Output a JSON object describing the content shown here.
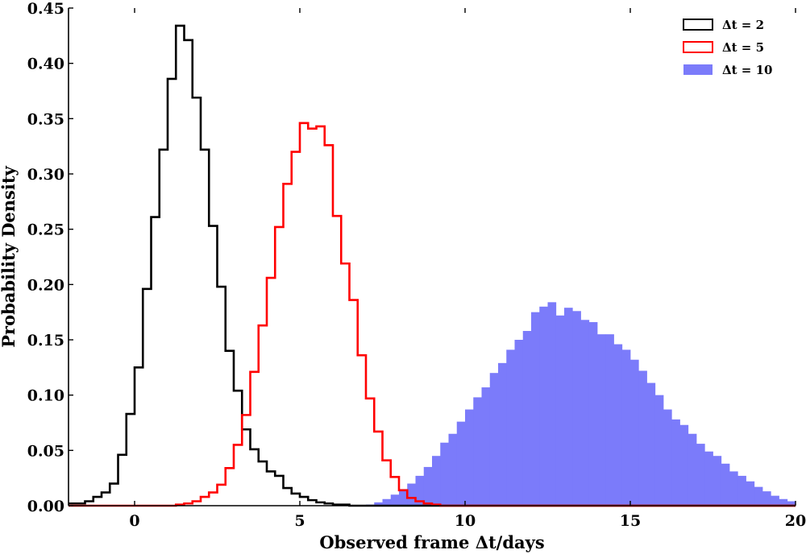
{
  "chart_data": {
    "type": "histogram",
    "xlabel": "Observed frame Δt/days",
    "ylabel": "Probability Density",
    "xlim": [
      -2,
      20
    ],
    "ylim": [
      0,
      0.45
    ],
    "x_ticks": [
      {
        "value": 0,
        "label": "0"
      },
      {
        "value": 5,
        "label": "5"
      },
      {
        "value": 10,
        "label": "10"
      },
      {
        "value": 15,
        "label": "15"
      },
      {
        "value": 20,
        "label": "20"
      }
    ],
    "y_ticks": [
      {
        "value": 0,
        "label": "0.00"
      },
      {
        "value": 0.05,
        "label": "0.05"
      },
      {
        "value": 0.1,
        "label": "0.10"
      },
      {
        "value": 0.15,
        "label": "0.15"
      },
      {
        "value": 0.2,
        "label": "0.20"
      },
      {
        "value": 0.25,
        "label": "0.25"
      },
      {
        "value": 0.3,
        "label": "0.30"
      },
      {
        "value": 0.35,
        "label": "0.35"
      },
      {
        "value": 0.4,
        "label": "0.40"
      },
      {
        "value": 0.45,
        "label": "0.45"
      }
    ],
    "legend_position": "top-right",
    "series": [
      {
        "name": "Δt = 2",
        "style": "step",
        "color": "#000000",
        "x0": -2.0,
        "bin_width": 0.25,
        "values": [
          0.002,
          0.002,
          0.004,
          0.008,
          0.012,
          0.02,
          0.046,
          0.083,
          0.125,
          0.196,
          0.261,
          0.322,
          0.386,
          0.434,
          0.421,
          0.369,
          0.322,
          0.253,
          0.198,
          0.14,
          0.104,
          0.069,
          0.051,
          0.04,
          0.031,
          0.027,
          0.016,
          0.011,
          0.008,
          0.005,
          0.003,
          0.002,
          0.001,
          0.001,
          0.0,
          0.0,
          0.0,
          0.0,
          0.0,
          0.0,
          0.0,
          0.0,
          0.0,
          0.0,
          0.0,
          0.0,
          0.0,
          0.0,
          0.0,
          0.0,
          0.0,
          0.0,
          0.0,
          0.0,
          0.0,
          0.0,
          0.0,
          0.0,
          0.0,
          0.0,
          0.0,
          0.0,
          0.0,
          0.0,
          0.0,
          0.0,
          0.0,
          0.0,
          0.0,
          0.0,
          0.0,
          0.0,
          0.0,
          0.0,
          0.0,
          0.0,
          0.0,
          0.0,
          0.0,
          0.0,
          0.0,
          0.0,
          0.0,
          0.0,
          0.0,
          0.0,
          0.0,
          0.0
        ]
      },
      {
        "name": "Δt = 5",
        "style": "step",
        "color": "#ff0000",
        "x0": -2.0,
        "bin_width": 0.25,
        "values": [
          0.0,
          0.0,
          0.0,
          0.0,
          0.0,
          0.0,
          0.0,
          0.0,
          0.0,
          0.0,
          0.0,
          0.0,
          0.0,
          0.001,
          0.002,
          0.004,
          0.008,
          0.012,
          0.019,
          0.034,
          0.055,
          0.082,
          0.121,
          0.163,
          0.206,
          0.252,
          0.291,
          0.32,
          0.346,
          0.341,
          0.343,
          0.326,
          0.262,
          0.219,
          0.186,
          0.136,
          0.097,
          0.067,
          0.041,
          0.026,
          0.014,
          0.007,
          0.004,
          0.002,
          0.001,
          0.0,
          0.0,
          0.0,
          0.0,
          0.0,
          0.0,
          0.0,
          0.0,
          0.0,
          0.0,
          0.0,
          0.0,
          0.0,
          0.0,
          0.0,
          0.0,
          0.0,
          0.0,
          0.0,
          0.0,
          0.0,
          0.0,
          0.0,
          0.0,
          0.0,
          0.0,
          0.0,
          0.0,
          0.0,
          0.0,
          0.0,
          0.0,
          0.0,
          0.0,
          0.0,
          0.0,
          0.0,
          0.0,
          0.0,
          0.0,
          0.0,
          0.0,
          0.0
        ]
      },
      {
        "name": "Δt = 10",
        "style": "filled",
        "color": "#7b7bfa",
        "x0": -2.0,
        "bin_width": 0.25,
        "values": [
          0.0,
          0.0,
          0.0,
          0.0,
          0.0,
          0.0,
          0.0,
          0.0,
          0.0,
          0.0,
          0.0,
          0.0,
          0.0,
          0.0,
          0.0,
          0.0,
          0.0,
          0.0,
          0.0,
          0.0,
          0.0,
          0.0,
          0.0,
          0.0,
          0.0,
          0.0,
          0.0,
          0.0,
          0.0,
          0.0,
          0.0,
          0.0,
          0.0,
          0.0,
          0.0,
          0.0,
          0.001,
          0.003,
          0.006,
          0.01,
          0.015,
          0.02,
          0.027,
          0.035,
          0.045,
          0.057,
          0.065,
          0.076,
          0.087,
          0.098,
          0.107,
          0.12,
          0.129,
          0.141,
          0.15,
          0.158,
          0.175,
          0.18,
          0.184,
          0.172,
          0.179,
          0.176,
          0.168,
          0.166,
          0.155,
          0.155,
          0.146,
          0.141,
          0.132,
          0.122,
          0.111,
          0.1,
          0.087,
          0.078,
          0.073,
          0.065,
          0.056,
          0.049,
          0.045,
          0.038,
          0.031,
          0.027,
          0.022,
          0.017,
          0.013,
          0.009,
          0.006,
          0.004
        ]
      }
    ]
  }
}
